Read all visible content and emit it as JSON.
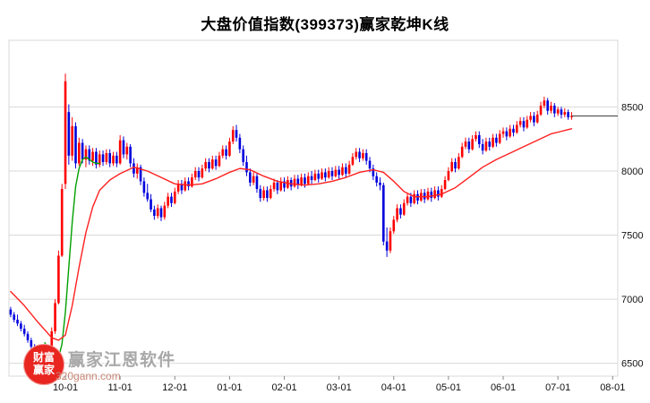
{
  "title": "大盘价值指数(399373)赢家乾坤K线",
  "watermark": {
    "logo_line1": "财富",
    "logo_line2": "赢家",
    "name": "赢家江恩软件",
    "site": "320gann.com"
  },
  "chart_data": {
    "type": "candlestick",
    "title": "大盘价值指数(399373)赢家乾坤K线",
    "xlabel": "",
    "ylabel": "",
    "ylim": [
      6400,
      9020
    ],
    "slots": 178,
    "grid": true,
    "y_ticks": [
      6500,
      7000,
      7500,
      8000,
      8500
    ],
    "x_ticks": [
      {
        "label": "10-01",
        "slot": 16
      },
      {
        "label": "11-01",
        "slot": 32
      },
      {
        "label": "12-01",
        "slot": 48
      },
      {
        "label": "01-01",
        "slot": 64
      },
      {
        "label": "02-01",
        "slot": 80
      },
      {
        "label": "03-01",
        "slot": 96
      },
      {
        "label": "04-01",
        "slot": 112
      },
      {
        "label": "05-01",
        "slot": 128
      },
      {
        "label": "06-01",
        "slot": 144
      },
      {
        "label": "07-01",
        "slot": 160
      },
      {
        "label": "08-01",
        "slot": 176
      }
    ],
    "last_price": 8430,
    "colors": {
      "up": "#ff0000",
      "down": "#0000dd",
      "ma_fast": "#00a000",
      "ma_slow": "#ff2020",
      "grid": "#d9d9d9",
      "tick": "#888888",
      "axis_text": "#111111",
      "last_line": "#404040"
    },
    "candles": [
      [
        6920,
        6940,
        6860,
        6880
      ],
      [
        6880,
        6900,
        6820,
        6840
      ],
      [
        6840,
        6880,
        6790,
        6810
      ],
      [
        6810,
        6830,
        6750,
        6770
      ],
      [
        6770,
        6800,
        6710,
        6730
      ],
      [
        6730,
        6750,
        6660,
        6680
      ],
      [
        6680,
        6700,
        6610,
        6630
      ],
      [
        6630,
        6650,
        6560,
        6580
      ],
      [
        6580,
        6600,
        6520,
        6540
      ],
      [
        6540,
        6580,
        6500,
        6520
      ],
      [
        6520,
        6560,
        6500,
        6540
      ],
      [
        6540,
        6600,
        6500,
        6580
      ],
      [
        6580,
        6780,
        6560,
        6750
      ],
      [
        6750,
        7000,
        6730,
        6970
      ],
      [
        6970,
        7380,
        6960,
        7340
      ],
      [
        7340,
        7900,
        7330,
        7860
      ],
      [
        7900,
        8760,
        7860,
        8700
      ],
      [
        8460,
        8520,
        8050,
        8120
      ],
      [
        8120,
        8420,
        8080,
        8350
      ],
      [
        8350,
        8380,
        8020,
        8060
      ],
      [
        8060,
        8260,
        8040,
        8220
      ],
      [
        8220,
        8250,
        8060,
        8090
      ],
      [
        8090,
        8200,
        8030,
        8170
      ],
      [
        8170,
        8200,
        8050,
        8080
      ],
      [
        8080,
        8180,
        8040,
        8150
      ],
      [
        8150,
        8180,
        8020,
        8050
      ],
      [
        8050,
        8160,
        8030,
        8130
      ],
      [
        8130,
        8160,
        8040,
        8070
      ],
      [
        8070,
        8170,
        8050,
        8140
      ],
      [
        8140,
        8170,
        8030,
        8060
      ],
      [
        8060,
        8150,
        8040,
        8120
      ],
      [
        8120,
        8150,
        8030,
        8060
      ],
      [
        8060,
        8280,
        8050,
        8240
      ],
      [
        8240,
        8270,
        8100,
        8130
      ],
      [
        8130,
        8220,
        8090,
        8190
      ],
      [
        8190,
        8210,
        8030,
        8060
      ],
      [
        8060,
        8100,
        7950,
        7980
      ],
      [
        7980,
        8060,
        7940,
        8030
      ],
      [
        8030,
        8050,
        7890,
        7920
      ],
      [
        7920,
        7950,
        7800,
        7830
      ],
      [
        7830,
        7900,
        7760,
        7780
      ],
      [
        7780,
        7820,
        7680,
        7700
      ],
      [
        7700,
        7730,
        7620,
        7650
      ],
      [
        7650,
        7740,
        7630,
        7710
      ],
      [
        7710,
        7730,
        7610,
        7640
      ],
      [
        7640,
        7760,
        7620,
        7730
      ],
      [
        7730,
        7830,
        7710,
        7800
      ],
      [
        7800,
        7830,
        7720,
        7750
      ],
      [
        7750,
        7870,
        7740,
        7840
      ],
      [
        7840,
        7930,
        7820,
        7900
      ],
      [
        7900,
        7930,
        7820,
        7850
      ],
      [
        7850,
        7950,
        7840,
        7920
      ],
      [
        7920,
        7950,
        7850,
        7880
      ],
      [
        7880,
        7980,
        7870,
        7950
      ],
      [
        7950,
        8030,
        7930,
        8000
      ],
      [
        8000,
        8030,
        7920,
        7950
      ],
      [
        7950,
        8050,
        7940,
        8020
      ],
      [
        8020,
        8100,
        8000,
        8070
      ],
      [
        8070,
        8100,
        7990,
        8020
      ],
      [
        8020,
        8120,
        8010,
        8090
      ],
      [
        8090,
        8120,
        8010,
        8040
      ],
      [
        8040,
        8150,
        8030,
        8120
      ],
      [
        8120,
        8200,
        8100,
        8170
      ],
      [
        8170,
        8200,
        8090,
        8120
      ],
      [
        8120,
        8260,
        8110,
        8230
      ],
      [
        8230,
        8350,
        8210,
        8320
      ],
      [
        8320,
        8360,
        8230,
        8260
      ],
      [
        8260,
        8290,
        8140,
        8170
      ],
      [
        8170,
        8200,
        8040,
        8070
      ],
      [
        8070,
        8120,
        7960,
        7990
      ],
      [
        7990,
        8020,
        7880,
        7910
      ],
      [
        7910,
        7990,
        7890,
        7960
      ],
      [
        7960,
        7980,
        7830,
        7860
      ],
      [
        7860,
        7890,
        7760,
        7790
      ],
      [
        7790,
        7880,
        7770,
        7850
      ],
      [
        7850,
        7880,
        7760,
        7790
      ],
      [
        7790,
        7890,
        7780,
        7860
      ],
      [
        7860,
        7940,
        7840,
        7910
      ],
      [
        7910,
        7930,
        7820,
        7850
      ],
      [
        7850,
        7950,
        7840,
        7920
      ],
      [
        7920,
        7950,
        7840,
        7870
      ],
      [
        7870,
        7960,
        7860,
        7930
      ],
      [
        7930,
        7950,
        7850,
        7880
      ],
      [
        7880,
        7970,
        7870,
        7940
      ],
      [
        7940,
        7970,
        7860,
        7890
      ],
      [
        7890,
        7980,
        7880,
        7950
      ],
      [
        7950,
        7980,
        7870,
        7900
      ],
      [
        7900,
        7990,
        7890,
        7960
      ],
      [
        7960,
        8000,
        7900,
        7930
      ],
      [
        7930,
        8010,
        7920,
        7980
      ],
      [
        7980,
        8010,
        7910,
        7940
      ],
      [
        7940,
        8020,
        7930,
        7990
      ],
      [
        7990,
        8020,
        7920,
        7950
      ],
      [
        7950,
        8030,
        7940,
        8000
      ],
      [
        8000,
        8030,
        7930,
        7960
      ],
      [
        7960,
        8040,
        7950,
        8010
      ],
      [
        8010,
        8040,
        7940,
        7970
      ],
      [
        7970,
        8060,
        7960,
        8030
      ],
      [
        8030,
        8060,
        7950,
        7980
      ],
      [
        7980,
        8080,
        7970,
        8050
      ],
      [
        8050,
        8140,
        8040,
        8110
      ],
      [
        8110,
        8180,
        8090,
        8150
      ],
      [
        8150,
        8180,
        8070,
        8100
      ],
      [
        8100,
        8170,
        8080,
        8140
      ],
      [
        8140,
        8170,
        8050,
        8080
      ],
      [
        8080,
        8110,
        7990,
        8020
      ],
      [
        8020,
        8050,
        7930,
        7960
      ],
      [
        7960,
        7990,
        7880,
        7910
      ],
      [
        7910,
        7950,
        7850,
        7890
      ],
      [
        7890,
        7910,
        7420,
        7450
      ],
      [
        7450,
        7560,
        7330,
        7380
      ],
      [
        7380,
        7560,
        7360,
        7530
      ],
      [
        7530,
        7650,
        7510,
        7620
      ],
      [
        7620,
        7740,
        7600,
        7710
      ],
      [
        7710,
        7740,
        7630,
        7660
      ],
      [
        7660,
        7780,
        7650,
        7750
      ],
      [
        7750,
        7830,
        7730,
        7800
      ],
      [
        7800,
        7830,
        7720,
        7750
      ],
      [
        7750,
        7850,
        7740,
        7820
      ],
      [
        7820,
        7850,
        7740,
        7770
      ],
      [
        7770,
        7860,
        7760,
        7830
      ],
      [
        7830,
        7860,
        7750,
        7780
      ],
      [
        7780,
        7870,
        7770,
        7840
      ],
      [
        7840,
        7870,
        7760,
        7790
      ],
      [
        7790,
        7880,
        7780,
        7850
      ],
      [
        7850,
        7880,
        7770,
        7800
      ],
      [
        7800,
        7890,
        7790,
        7860
      ],
      [
        7860,
        7960,
        7850,
        7930
      ],
      [
        7930,
        8030,
        7920,
        8000
      ],
      [
        8000,
        8100,
        7990,
        8070
      ],
      [
        8070,
        8100,
        7990,
        8020
      ],
      [
        8020,
        8140,
        8010,
        8110
      ],
      [
        8110,
        8220,
        8100,
        8190
      ],
      [
        8190,
        8260,
        8170,
        8230
      ],
      [
        8230,
        8260,
        8140,
        8170
      ],
      [
        8170,
        8280,
        8160,
        8250
      ],
      [
        8250,
        8310,
        8230,
        8280
      ],
      [
        8280,
        8310,
        8180,
        8210
      ],
      [
        8210,
        8250,
        8130,
        8160
      ],
      [
        8160,
        8260,
        8150,
        8230
      ],
      [
        8230,
        8260,
        8160,
        8190
      ],
      [
        8190,
        8290,
        8180,
        8260
      ],
      [
        8260,
        8290,
        8190,
        8220
      ],
      [
        8220,
        8320,
        8210,
        8290
      ],
      [
        8290,
        8340,
        8260,
        8310
      ],
      [
        8310,
        8340,
        8240,
        8270
      ],
      [
        8270,
        8360,
        8260,
        8330
      ],
      [
        8330,
        8360,
        8270,
        8300
      ],
      [
        8300,
        8390,
        8290,
        8360
      ],
      [
        8360,
        8420,
        8340,
        8390
      ],
      [
        8390,
        8420,
        8310,
        8340
      ],
      [
        8340,
        8430,
        8330,
        8400
      ],
      [
        8400,
        8460,
        8380,
        8430
      ],
      [
        8430,
        8460,
        8350,
        8380
      ],
      [
        8380,
        8470,
        8370,
        8440
      ],
      [
        8440,
        8540,
        8430,
        8510
      ],
      [
        8510,
        8580,
        8490,
        8550
      ],
      [
        8550,
        8570,
        8440,
        8470
      ],
      [
        8470,
        8540,
        8450,
        8510
      ],
      [
        8510,
        8530,
        8420,
        8450
      ],
      [
        8450,
        8500,
        8430,
        8480
      ],
      [
        8480,
        8500,
        8410,
        8440
      ],
      [
        8440,
        8490,
        8420,
        8460
      ],
      [
        8460,
        8480,
        8400,
        8420
      ],
      [
        8420,
        8460,
        8400,
        8430
      ]
    ],
    "ma_green": [
      [
        10,
        6660
      ],
      [
        11,
        6600
      ],
      [
        12,
        6540
      ],
      [
        13,
        6510
      ],
      [
        14,
        6540
      ],
      [
        15,
        6650
      ],
      [
        16,
        6900
      ],
      [
        17,
        7250
      ],
      [
        18,
        7600
      ],
      [
        19,
        7880
      ],
      [
        20,
        8020
      ],
      [
        21,
        8090
      ],
      [
        22,
        8110
      ],
      [
        23,
        8090
      ],
      [
        24,
        8070
      ],
      [
        25,
        8060
      ],
      [
        26,
        8060
      ]
    ],
    "ma_red": [
      [
        0,
        7060
      ],
      [
        4,
        6950
      ],
      [
        8,
        6820
      ],
      [
        12,
        6700
      ],
      [
        14,
        6680
      ],
      [
        16,
        6720
      ],
      [
        18,
        6950
      ],
      [
        20,
        7250
      ],
      [
        22,
        7520
      ],
      [
        24,
        7720
      ],
      [
        26,
        7850
      ],
      [
        29,
        7930
      ],
      [
        32,
        7980
      ],
      [
        36,
        8030
      ],
      [
        40,
        8000
      ],
      [
        44,
        7950
      ],
      [
        48,
        7900
      ],
      [
        52,
        7890
      ],
      [
        56,
        7900
      ],
      [
        60,
        7940
      ],
      [
        64,
        7990
      ],
      [
        67,
        8020
      ],
      [
        70,
        8010
      ],
      [
        74,
        7960
      ],
      [
        78,
        7920
      ],
      [
        82,
        7900
      ],
      [
        86,
        7890
      ],
      [
        90,
        7900
      ],
      [
        94,
        7920
      ],
      [
        98,
        7950
      ],
      [
        102,
        7990
      ],
      [
        106,
        8010
      ],
      [
        109,
        7990
      ],
      [
        112,
        7920
      ],
      [
        115,
        7840
      ],
      [
        118,
        7800
      ],
      [
        122,
        7800
      ],
      [
        126,
        7820
      ],
      [
        130,
        7870
      ],
      [
        134,
        7950
      ],
      [
        138,
        8030
      ],
      [
        142,
        8090
      ],
      [
        146,
        8140
      ],
      [
        150,
        8190
      ],
      [
        154,
        8240
      ],
      [
        158,
        8290
      ],
      [
        161,
        8310
      ],
      [
        164,
        8330
      ]
    ]
  }
}
